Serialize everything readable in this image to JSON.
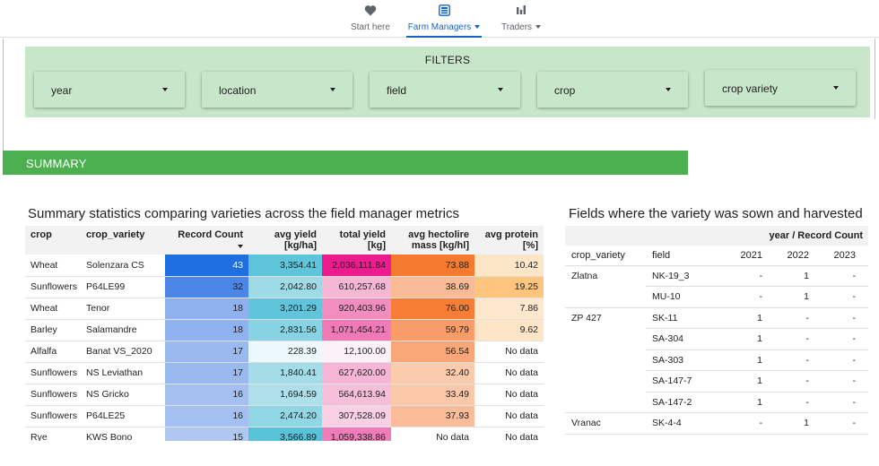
{
  "nav": {
    "items": [
      {
        "label": "Start here",
        "icon": "heart-icon"
      },
      {
        "label": "Farm Managers",
        "icon": "dashboard-icon",
        "active": true
      },
      {
        "label": "Traders",
        "icon": "bar-chart-icon"
      }
    ],
    "accent": "#1565c0"
  },
  "filters": {
    "title": "FILTERS",
    "background": "#c8e6c9",
    "dropdowns": [
      "year",
      "location",
      "field",
      "crop",
      "crop variety"
    ]
  },
  "summary": {
    "label": "SUMMARY",
    "color": "#4caf50"
  },
  "left_table": {
    "title": "Summary statistics comparing varieties across the field manager metrics",
    "headers": {
      "crop": "crop",
      "variety": "crop_variety",
      "count": "Record Count",
      "yield_1": "avg yield",
      "yield_2": "[kg/ha]",
      "total_1": "total yield",
      "total_2": "[kg]",
      "hecto_1": "avg hectolire",
      "hecto_2": "mass [kg/hl]",
      "protein_1": "avg protein",
      "protein_2": "[%]"
    },
    "rows": [
      {
        "crop": "Wheat",
        "variety": "Solenzara CS",
        "count": "43",
        "yield": "3,354.41",
        "total": "2,036,111.84",
        "hecto": "73.88",
        "protein": "10.42"
      },
      {
        "crop": "Sunflowers",
        "variety": "P64LE99",
        "count": "32",
        "yield": "2,042.80",
        "total": "610,257.68",
        "hecto": "38.69",
        "protein": "19.25"
      },
      {
        "crop": "Wheat",
        "variety": "Tenor",
        "count": "18",
        "yield": "3,201.29",
        "total": "920,403.96",
        "hecto": "76.00",
        "protein": "7.86"
      },
      {
        "crop": "Barley",
        "variety": "Salamandre",
        "count": "18",
        "yield": "2,831.56",
        "total": "1,071,454.21",
        "hecto": "59.79",
        "protein": "9.62"
      },
      {
        "crop": "Alfalfa",
        "variety": "Banat VS_2020",
        "count": "17",
        "yield": "228.39",
        "total": "12,100.00",
        "hecto": "56.54",
        "protein": "No data"
      },
      {
        "crop": "Sunflowers",
        "variety": "NS Leviathan",
        "count": "17",
        "yield": "1,840.41",
        "total": "627,620.00",
        "hecto": "32.40",
        "protein": "No data"
      },
      {
        "crop": "Sunflowers",
        "variety": "NS Gricko",
        "count": "16",
        "yield": "1,694.59",
        "total": "564,613.94",
        "hecto": "33.49",
        "protein": "No data"
      },
      {
        "crop": "Sunflowers",
        "variety": "P64LE25",
        "count": "16",
        "yield": "2,474.20",
        "total": "307,528.09",
        "hecto": "37.93",
        "protein": "No data"
      },
      {
        "crop": "Rye",
        "variety": "KWS Bono",
        "count": "15",
        "yield": "3,566.89",
        "total": "1,059,338.86",
        "hecto": "No data",
        "protein": "No data"
      }
    ],
    "cell_colors": [
      [
        "#1f6fe0",
        "#5ec4d9",
        "#ec1b8e",
        "#f47a30",
        "#fde6c7"
      ],
      [
        "#4c86e6",
        "#9fdbe7",
        "#f6b7d5",
        "#f9ba96",
        "#fec57e"
      ],
      [
        "#8fb1ee",
        "#60c5da",
        "#f28dc0",
        "#f57d34",
        "#fde8cd"
      ],
      [
        "#8fb1ee",
        "#87d3e3",
        "#f07ab8",
        "#f89d69",
        "#fde5c6"
      ],
      [
        "#9ab9ef",
        "#ecf8fb",
        "#fcf1f7",
        "#f9a778",
        "#ffffff"
      ],
      [
        "#9ab9ef",
        "#a4dce8",
        "#f6b5d4",
        "#fbcbae",
        "#ffffff"
      ],
      [
        "#a4c0f0",
        "#ade0ea",
        "#f7bed9",
        "#fbc9aa",
        "#ffffff"
      ],
      [
        "#a4c0f0",
        "#90d6e4",
        "#f9d0e3",
        "#fabc99",
        "#ffffff"
      ],
      [
        "#b0c8f1",
        "#58c2d8",
        "#f07bb9",
        "#ffffff",
        "#ffffff"
      ]
    ],
    "text_colors": [
      [
        "#ffffff",
        "#212121",
        "#212121",
        "#212121",
        "#212121"
      ]
    ]
  },
  "right_table": {
    "title": "Fields where the variety was sown and harvested",
    "group_header": "year / Record Count",
    "headers": {
      "variety": "crop_variety",
      "field": "field",
      "y1": "2021",
      "y2": "2022",
      "y3": "2023"
    },
    "rows": [
      {
        "variety": "Zlatna",
        "field": "NK-19_3",
        "y1": "-",
        "y2": "1",
        "y3": "-"
      },
      {
        "variety": "",
        "field": "MU-10",
        "y1": "-",
        "y2": "1",
        "y3": "-"
      },
      {
        "variety": "ZP 427",
        "field": "SK-11",
        "y1": "1",
        "y2": "-",
        "y3": "-"
      },
      {
        "variety": "",
        "field": "SA-304",
        "y1": "1",
        "y2": "-",
        "y3": "-"
      },
      {
        "variety": "",
        "field": "SA-303",
        "y1": "1",
        "y2": "-",
        "y3": "-"
      },
      {
        "variety": "",
        "field": "SA-147-7",
        "y1": "1",
        "y2": "-",
        "y3": "-"
      },
      {
        "variety": "",
        "field": "SA-147-2",
        "y1": "1",
        "y2": "-",
        "y3": "-"
      },
      {
        "variety": "Vranac",
        "field": "SK-4-4",
        "y1": "-",
        "y2": "1",
        "y3": "-"
      }
    ]
  }
}
